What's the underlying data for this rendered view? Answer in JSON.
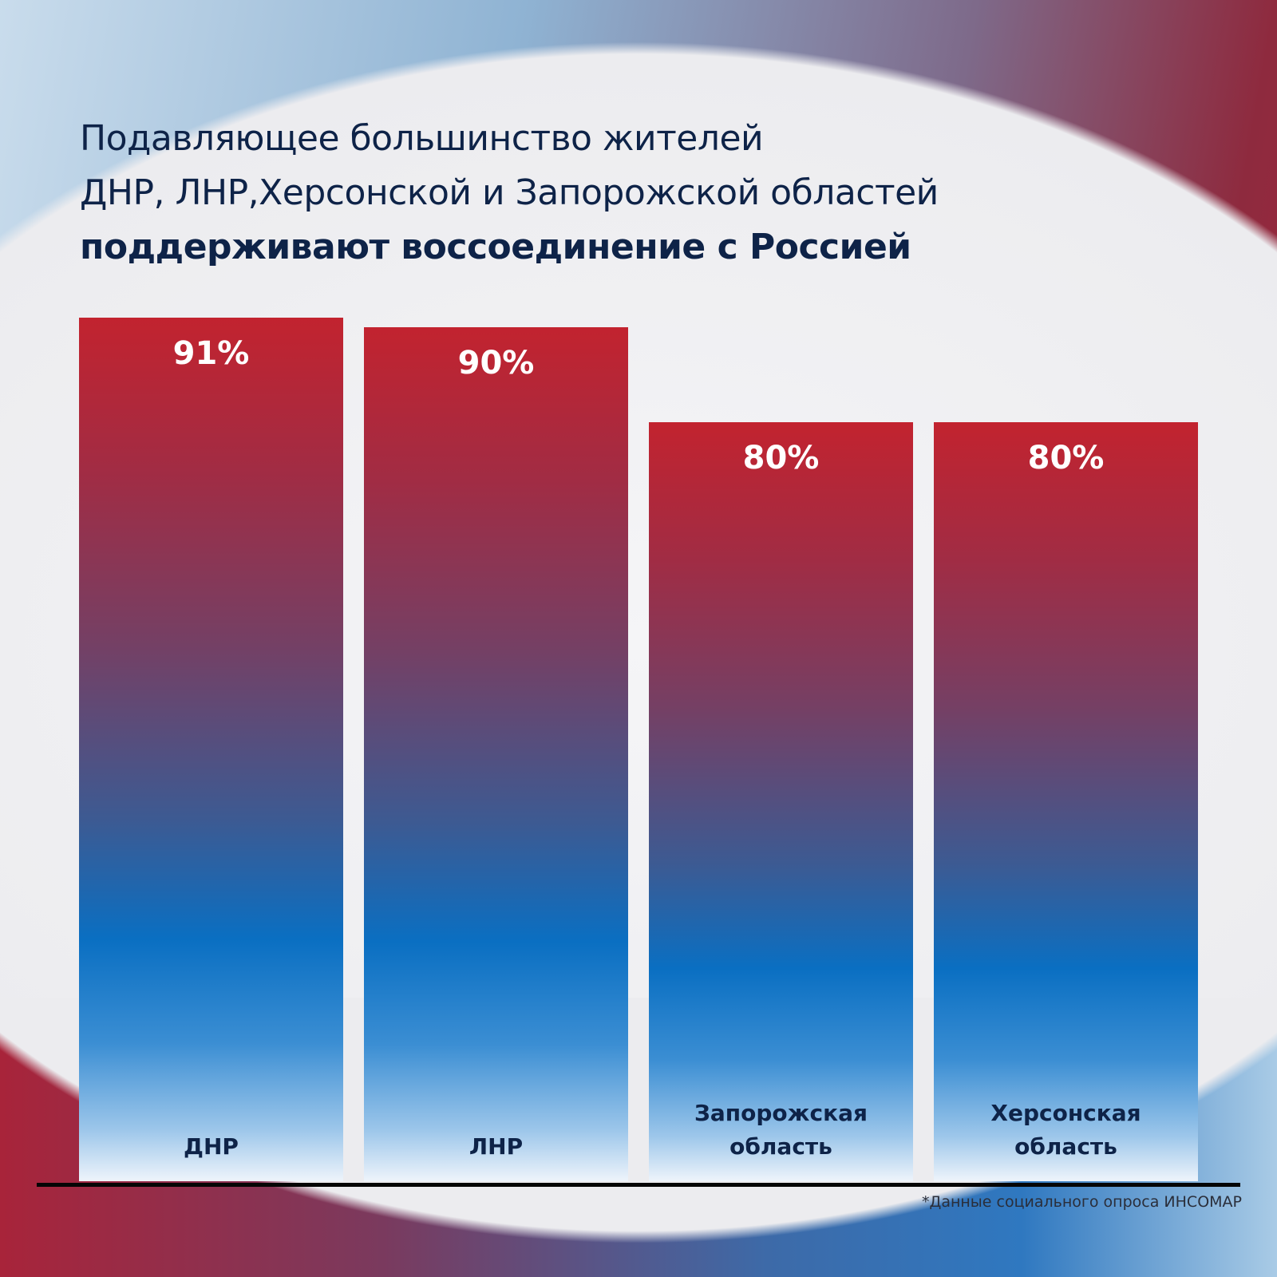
{
  "title": {
    "line1": "Подавляющее большинство жителей",
    "line2": "ДНР, ЛНР,Херсонской и Запорожской областей",
    "line3": "поддерживают воссоединение с Россией"
  },
  "footnote": "*Данные социального опроса ИНСОМАР",
  "colors": {
    "bar_top": "#c2232f",
    "bar_mid": "#0a6fc2",
    "text": "#0e2348"
  },
  "chart_data": {
    "type": "bar",
    "categories": [
      "ДНР",
      "ЛНР",
      "Запорожская область",
      "Херсонская область"
    ],
    "values": [
      91,
      90,
      80,
      80
    ],
    "value_labels": [
      "91%",
      "90%",
      "80%",
      "80%"
    ],
    "title": "Подавляющее большинство жителей ДНР, ЛНР,Херсонской и Запорожской областей поддерживают воссоединение с Россией",
    "xlabel": "",
    "ylabel": "",
    "ylim": [
      0,
      100
    ],
    "grid": false,
    "unit": "%"
  }
}
